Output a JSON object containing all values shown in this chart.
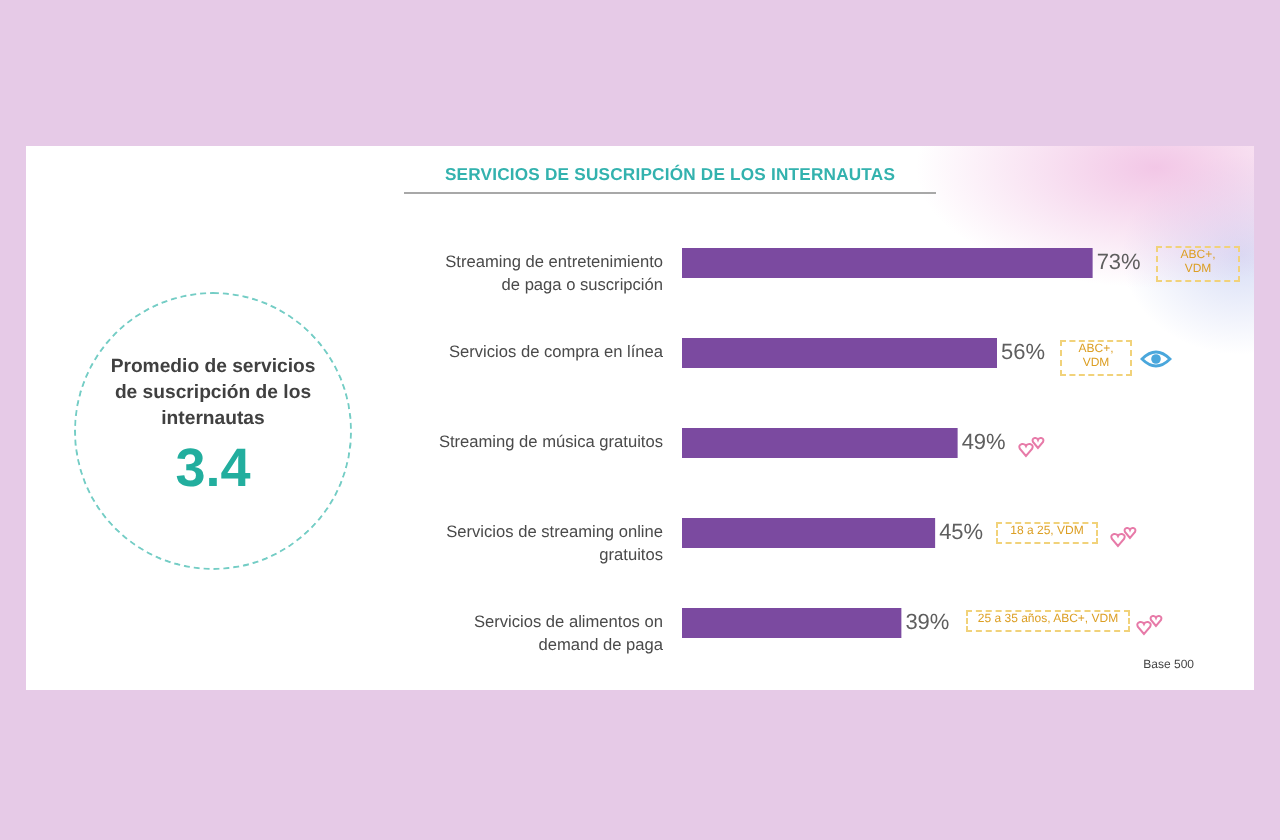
{
  "chart_data": [
    {
      "type": "other",
      "title": "Promedio de servicios de suscripción de los internautas",
      "annotations": [
        "3.4"
      ]
    },
    {
      "type": "bar",
      "orientation": "horizontal",
      "title": "SERVICIOS DE SUSCRIPCIÓN DE LOS INTERNAUTAS",
      "categories": [
        "Streaming de entretenimiento de paga o suscripción",
        "Servicios de compra en línea",
        "Streaming de música gratuitos",
        "Servicios de streaming online gratuitos",
        "Servicios de alimentos on demand de paga"
      ],
      "values": [
        73,
        56,
        49,
        45,
        39
      ],
      "value_labels": [
        "73%",
        "56%",
        "49%",
        "45%",
        "39%"
      ],
      "color": "#7b4aa0",
      "tick_labels": "y",
      "annotations": [
        "ABC+, VDM",
        "ABC+, VDM",
        "18 a 25, VDM",
        "25 a 35 años, ABC+, VDM",
        "Base 500"
      ]
    }
  ]
}
